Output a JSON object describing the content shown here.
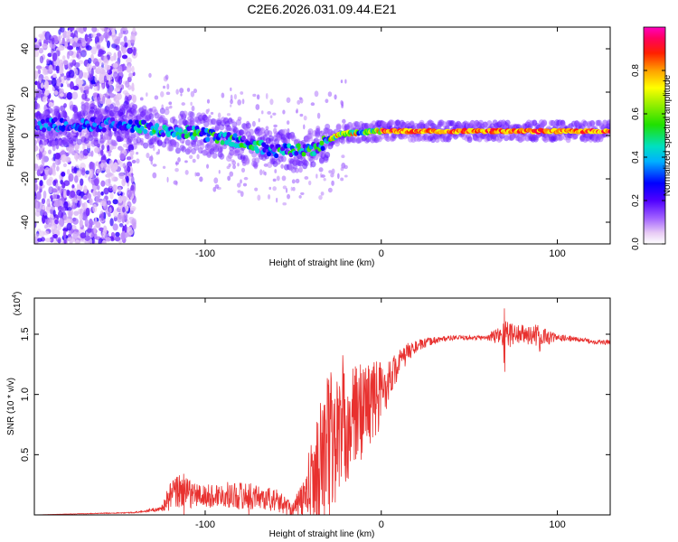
{
  "title": "C2E6.2026.031.09.44.E21",
  "chart_data": [
    {
      "type": "heatmap",
      "xlabel": "Height of straight line (km)",
      "ylabel": "Frequency (Hz)",
      "xlim": [
        -197,
        130
      ],
      "ylim": [
        -50,
        50
      ],
      "xticks": [
        -100,
        0,
        100
      ],
      "yticks": [
        -40,
        -20,
        0,
        20,
        40
      ],
      "colorbar": {
        "label": "Normalized spectral amplitude",
        "range": [
          0,
          1
        ],
        "ticks": [
          "0.0",
          "0.2",
          "0.4",
          "0.6",
          "0.8"
        ],
        "tick_values": [
          0,
          0.2,
          0.4,
          0.6,
          0.8
        ]
      },
      "ridge": {
        "x": [
          -195,
          -170,
          -150,
          -135,
          -120,
          -105,
          -90,
          -80,
          -70,
          -60,
          -50,
          -40,
          -35,
          -30,
          -25,
          -20,
          -10,
          0,
          20,
          40,
          60,
          80,
          100,
          130
        ],
        "y": [
          5,
          5,
          5,
          4,
          2,
          1,
          -1,
          -3,
          -5,
          -7,
          -7,
          -7,
          -5,
          -2,
          0,
          1,
          1.5,
          2,
          2,
          2,
          2,
          2,
          2,
          2
        ]
      }
    },
    {
      "type": "line",
      "xlabel": "Height of straight line (km)",
      "ylabel": "SNR (10 * v/v)",
      "yscale_label": "(x10",
      "yscale_exp": "4",
      "yscale_close": ")",
      "xlim": [
        -197,
        130
      ],
      "ylim": [
        0,
        1.8
      ],
      "xticks": [
        -100,
        0,
        100
      ],
      "yticks": [
        0.5,
        1.0,
        1.5
      ],
      "ytick_labels": [
        "0.5",
        "1.0",
        "1.5"
      ],
      "color": "#e8312f",
      "envelope": {
        "x": [
          -197,
          -140,
          -125,
          -120,
          -115,
          -110,
          -100,
          -90,
          -80,
          -70,
          -60,
          -50,
          -45,
          -40,
          -35,
          -30,
          -25,
          -20,
          -15,
          -10,
          -5,
          0,
          5,
          10,
          15,
          20,
          30,
          40,
          50,
          60,
          70,
          80,
          90,
          100,
          110,
          120,
          130
        ],
        "y": [
          0.0,
          0.02,
          0.05,
          0.15,
          0.2,
          0.18,
          0.15,
          0.17,
          0.16,
          0.15,
          0.12,
          0.05,
          0.1,
          0.25,
          0.4,
          0.55,
          0.65,
          0.75,
          0.8,
          0.9,
          0.95,
          1.0,
          1.15,
          1.25,
          1.35,
          1.4,
          1.45,
          1.47,
          1.47,
          1.47,
          1.5,
          1.5,
          1.48,
          1.47,
          1.46,
          1.44,
          1.43
        ],
        "noise": [
          0.0,
          0.005,
          0.02,
          0.12,
          0.15,
          0.12,
          0.1,
          0.1,
          0.12,
          0.1,
          0.1,
          0.06,
          0.18,
          0.35,
          0.55,
          0.7,
          0.55,
          0.5,
          0.45,
          0.4,
          0.35,
          0.3,
          0.15,
          0.12,
          0.08,
          0.05,
          0.03,
          0.02,
          0.02,
          0.02,
          0.12,
          0.08,
          0.1,
          0.03,
          0.02,
          0.02,
          0.02
        ]
      }
    }
  ]
}
